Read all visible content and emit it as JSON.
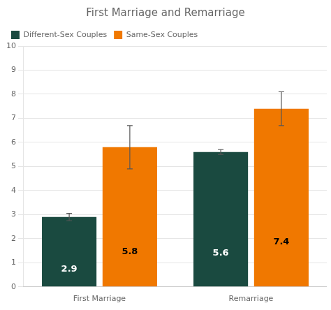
{
  "chart_data": {
    "type": "bar",
    "title": "First Marriage and Remarriage",
    "categories": [
      "First Marriage",
      "Remarriage"
    ],
    "series": [
      {
        "name": "Different-Sex Couples",
        "color": "#1a4a40",
        "values": [
          2.9,
          5.6
        ],
        "errors": [
          0.15,
          0.1
        ]
      },
      {
        "name": "Same-Sex Couples",
        "color": "#f07800",
        "values": [
          5.8,
          7.4
        ],
        "errors": [
          0.9,
          0.7
        ]
      }
    ],
    "ylim": [
      0,
      10
    ],
    "yticks": [
      0,
      1,
      2,
      3,
      4,
      5,
      6,
      7,
      8,
      9,
      10
    ],
    "grid": true,
    "legend": "upper left",
    "data_labels": true
  }
}
